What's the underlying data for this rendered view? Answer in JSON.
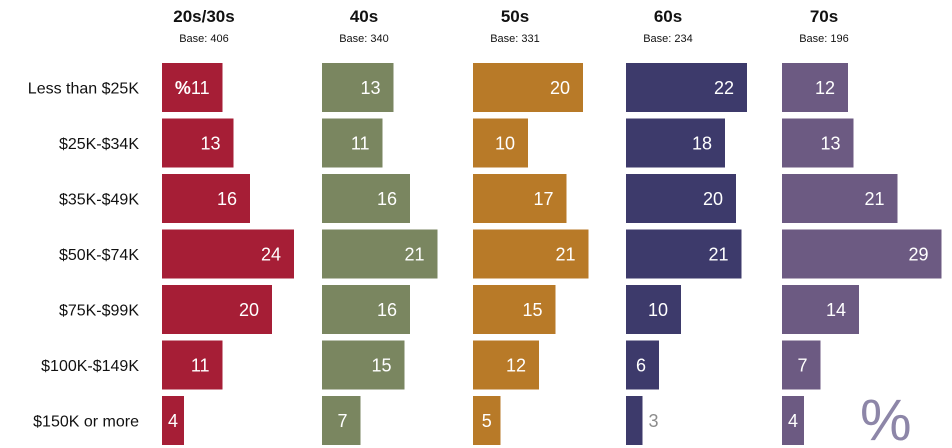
{
  "chart_data": {
    "type": "bar",
    "orientation": "horizontal",
    "unit_mark": "%",
    "categories": [
      "Less than $25K",
      "$25K-$34K",
      "$35K-$49K",
      "$50K-$74K",
      "$75K-$99K",
      "$100K-$149K",
      "$150K or more"
    ],
    "series": [
      {
        "name": "20s/30s",
        "base": "Base: 406",
        "color": "#a61e36",
        "values": [
          11,
          13,
          16,
          24,
          20,
          11,
          4
        ]
      },
      {
        "name": "40s",
        "base": "Base: 340",
        "color": "#7a8660",
        "values": [
          13,
          11,
          16,
          21,
          16,
          15,
          7
        ]
      },
      {
        "name": "50s",
        "base": "Base: 331",
        "color": "#b87a28",
        "values": [
          20,
          10,
          17,
          21,
          15,
          12,
          5
        ]
      },
      {
        "name": "60s",
        "base": "Base: 234",
        "color": "#3d3a6b",
        "values": [
          22,
          18,
          20,
          21,
          10,
          6,
          3
        ]
      },
      {
        "name": "70s",
        "base": "Base: 196",
        "color": "#6c5a82",
        "values": [
          12,
          13,
          21,
          29,
          14,
          7,
          4
        ]
      }
    ],
    "first_label_prefix": "%",
    "outside_label_color": "#8c8c8c",
    "corner_mark_color": "#8d86a8"
  }
}
